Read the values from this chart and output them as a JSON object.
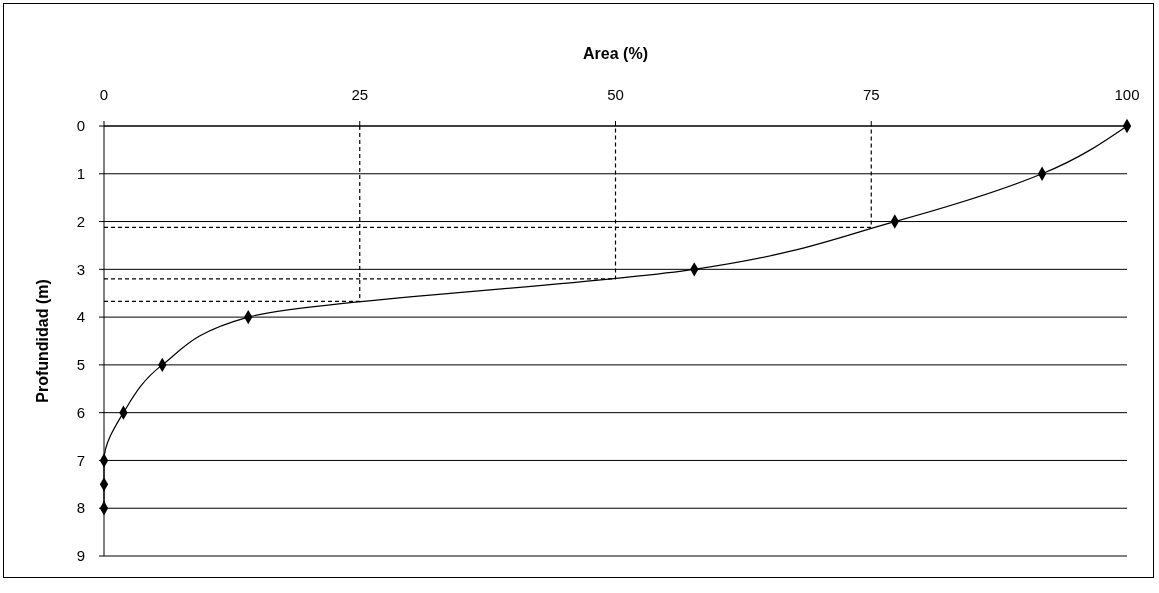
{
  "chart_data": {
    "type": "line",
    "xlabel": "Area (%)",
    "ylabel": "Profundidad (m)",
    "xlim": [
      0,
      100
    ],
    "xticks": [
      0,
      25,
      50,
      75,
      100
    ],
    "ylim": [
      9,
      0
    ],
    "yticks": [
      0,
      1,
      2,
      3,
      4,
      5,
      6,
      7,
      8,
      9
    ],
    "grid": "y",
    "series": [
      {
        "color": "#000000",
        "marker": "diamond",
        "line_style": "solid",
        "x": [
          100,
          91.7,
          77.3,
          57.7,
          14.1,
          5.7,
          1.9,
          0,
          0,
          0
        ],
        "values": [
          0,
          1,
          2,
          3,
          4,
          5,
          6,
          7,
          7.5,
          8
        ]
      },
      {
        "type": "line",
        "color": "#000000",
        "marker": "none",
        "line_style": "dashed",
        "x": [
          0,
          75,
          75
        ],
        "values": [
          2.12,
          2.12,
          0
        ]
      },
      {
        "type": "line",
        "color": "#000000",
        "marker": "none",
        "line_style": "dashed",
        "x": [
          0,
          50,
          50
        ],
        "values": [
          3.2,
          3.2,
          0
        ]
      },
      {
        "type": "line",
        "color": "#000000",
        "marker": "none",
        "line_style": "dashed",
        "x": [
          0,
          25,
          25
        ],
        "values": [
          3.67,
          3.67,
          0
        ]
      }
    ]
  }
}
